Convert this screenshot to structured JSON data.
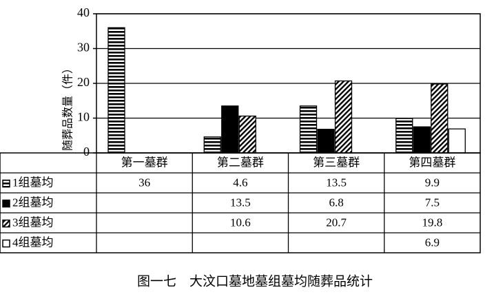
{
  "chart_data": {
    "type": "bar",
    "title": "图一七　大汶口墓地墓组墓均随葬品统计",
    "y_label": "随葬品数量（件）",
    "categories": [
      "第一墓群",
      "第二墓群",
      "第三墓群",
      "第四墓群"
    ],
    "series": [
      {
        "name": "1组墓均",
        "color": "#000000",
        "pattern": "hstripe",
        "values": [
          36,
          4.6,
          13.5,
          9.9
        ]
      },
      {
        "name": "2组墓均",
        "color": "#000000",
        "pattern": "solid",
        "values": [
          null,
          13.5,
          6.8,
          7.5
        ]
      },
      {
        "name": "3组墓均",
        "color": "#000000",
        "pattern": "diag",
        "values": [
          null,
          10.6,
          20.7,
          19.8
        ]
      },
      {
        "name": "4组墓均",
        "color": "#ffffff",
        "pattern": "none",
        "values": [
          null,
          null,
          null,
          6.9
        ]
      }
    ],
    "ylim": [
      0,
      40
    ],
    "yticks": [
      0,
      10,
      20,
      30,
      40
    ],
    "grid": true,
    "data_table": true
  }
}
